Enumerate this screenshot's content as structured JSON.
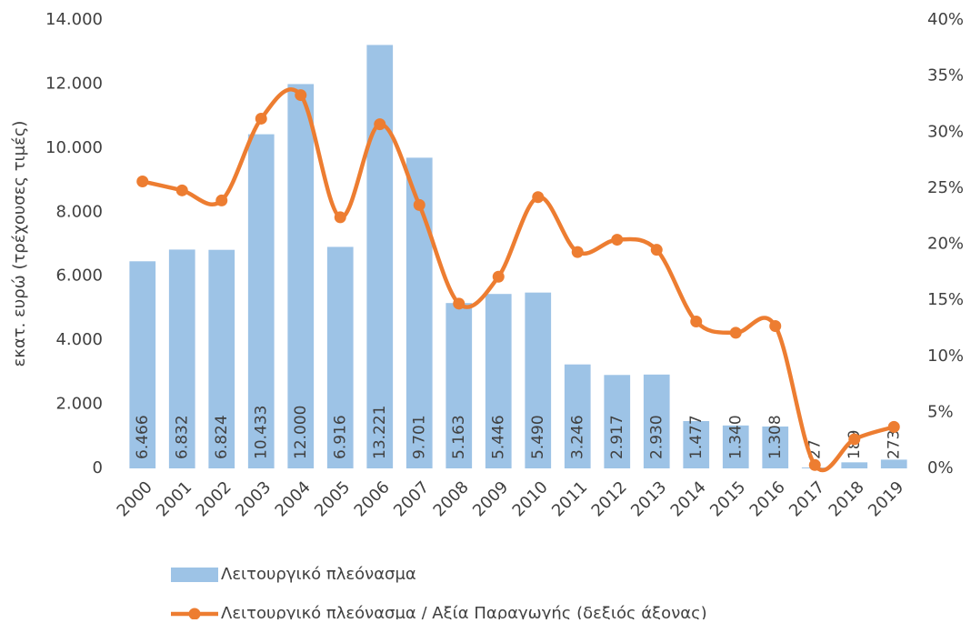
{
  "chart_data": {
    "type": "bar_line",
    "ylabel": "εκατ. ευρώ (τρέχουσες τιμές)",
    "categories": [
      "2000",
      "2001",
      "2002",
      "2003",
      "2004",
      "2005",
      "2006",
      "2007",
      "2008",
      "2009",
      "2010",
      "2011",
      "2012",
      "2013",
      "2014",
      "2015",
      "2016",
      "2017",
      "2018",
      "2019"
    ],
    "series": [
      {
        "name": "Λειτουργικό πλεόνασμα",
        "type": "bar",
        "color": "#9dc3e6",
        "values": [
          6466,
          6832,
          6824,
          10433,
          12000,
          6916,
          13221,
          9701,
          5163,
          5446,
          5490,
          3246,
          2917,
          2930,
          1477,
          1340,
          1308,
          27,
          189,
          273
        ],
        "value_labels": [
          "6.466",
          "6.832",
          "6.824",
          "10.433",
          "12.000",
          "6.916",
          "13.221",
          "9.701",
          "5.163",
          "5.446",
          "5.490",
          "3.246",
          "2.917",
          "2.930",
          "1.477",
          "1.340",
          "1.308",
          "27",
          "189",
          "273"
        ]
      },
      {
        "name": "Λειτουργικό πλεόνασμα / Αξία Παραγωγής (δεξιός άξονας)",
        "type": "line",
        "axis": "y2",
        "color": "#ed7d31",
        "values": [
          25.6,
          24.8,
          23.9,
          31.2,
          33.3,
          22.4,
          30.7,
          23.5,
          14.7,
          17.1,
          24.2,
          19.3,
          20.4,
          19.5,
          13.1,
          12.1,
          12.7,
          0.3,
          2.6,
          3.7
        ]
      }
    ],
    "ylim": [
      0,
      14000
    ],
    "yticks": [
      0,
      {
        "value": 2000,
        "label": "2.000"
      },
      {
        "value": 4000,
        "label": "4.000"
      },
      {
        "value": 6000,
        "label": "6.000"
      },
      {
        "value": 8000,
        "label": "8.000"
      },
      {
        "value": 10000,
        "label": "10.000"
      },
      {
        "value": 12000,
        "label": "12.000"
      },
      {
        "value": 14000,
        "label": "14.000"
      }
    ],
    "y2lim": [
      0,
      40
    ],
    "y2ticks": [
      {
        "value": 0,
        "label": "0%"
      },
      {
        "value": 5,
        "label": "5%"
      },
      {
        "value": 10,
        "label": "10%"
      },
      {
        "value": 15,
        "label": "15%"
      },
      {
        "value": 20,
        "label": "20%"
      },
      {
        "value": 25,
        "label": "25%"
      },
      {
        "value": 30,
        "label": "30%"
      },
      {
        "value": 35,
        "label": "35%"
      },
      {
        "value": 40,
        "label": "40%"
      }
    ]
  }
}
